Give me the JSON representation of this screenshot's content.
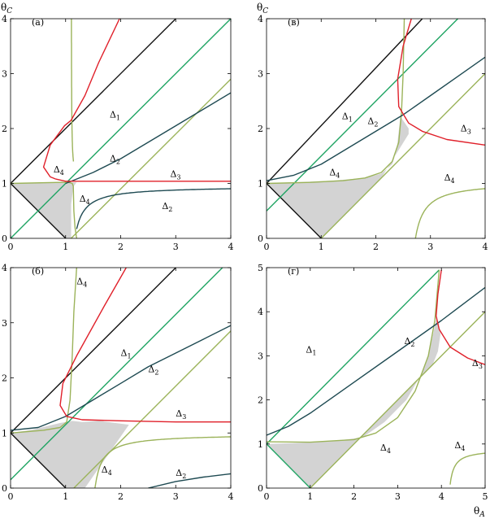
{
  "colors": {
    "black_line": "#111111",
    "green_line": "#1fa463",
    "olive_curve": "#9bb35a",
    "teal_curve": "#1e4a52",
    "red_curve": "#e0202a",
    "shaded_region": "#d3d3d3"
  },
  "chart_data": [
    {
      "type": "line",
      "panel_label": "(а)",
      "ylabel": "θC",
      "xlabel": "",
      "xlim": [
        0,
        4
      ],
      "ylim": [
        0,
        4
      ],
      "xticks": [
        "0",
        "1",
        "2",
        "3",
        "4"
      ],
      "yticks": [
        "0",
        "1",
        "2",
        "3",
        "4"
      ],
      "annotations": [
        {
          "text": "Δ1",
          "x": 1.8,
          "y": 2.2
        },
        {
          "text": "Δ2",
          "x": 1.8,
          "y": 1.4
        },
        {
          "text": "Δ3",
          "x": 2.9,
          "y": 1.12
        },
        {
          "text": "Δ4",
          "x": 0.78,
          "y": 1.2
        },
        {
          "text": "Δ4",
          "x": 1.25,
          "y": 0.67
        },
        {
          "text": "Δ2",
          "x": 2.75,
          "y": 0.53
        }
      ]
    },
    {
      "type": "line",
      "panel_label": "(в)",
      "ylabel": "θC",
      "xlabel": "",
      "xlim": [
        0,
        4
      ],
      "ylim": [
        0,
        4
      ],
      "xticks": [
        "0",
        "1",
        "2",
        "3",
        "4"
      ],
      "yticks": [
        "0",
        "1",
        "2",
        "3",
        "4"
      ],
      "annotations": [
        {
          "text": "Δ1",
          "x": 1.38,
          "y": 2.17
        },
        {
          "text": "Δ2",
          "x": 1.85,
          "y": 2.08
        },
        {
          "text": "Δ3",
          "x": 3.55,
          "y": 1.95
        },
        {
          "text": "Δ4",
          "x": 1.15,
          "y": 1.15
        },
        {
          "text": "Δ4",
          "x": 3.25,
          "y": 1.05
        }
      ]
    },
    {
      "type": "line",
      "panel_label": "(б)",
      "ylabel": "",
      "xlabel": "",
      "xlim": [
        0,
        4
      ],
      "ylim": [
        0,
        4
      ],
      "xticks": [
        "0",
        "1",
        "2",
        "3",
        "4"
      ],
      "yticks": [
        "0",
        "1",
        "2",
        "3",
        "4"
      ],
      "annotations": [
        {
          "text": "Δ4",
          "x": 1.2,
          "y": 3.7
        },
        {
          "text": "Δ1",
          "x": 2.0,
          "y": 2.4
        },
        {
          "text": "Δ2",
          "x": 2.5,
          "y": 2.1
        },
        {
          "text": "Δ3",
          "x": 3.0,
          "y": 1.3
        },
        {
          "text": "Δ4",
          "x": 1.65,
          "y": 0.28
        },
        {
          "text": "Δ2",
          "x": 3.0,
          "y": 0.22
        }
      ]
    },
    {
      "type": "line",
      "panel_label": "(г)",
      "ylabel": "",
      "xlabel": "θA",
      "xlim": [
        0,
        5
      ],
      "ylim": [
        0,
        5
      ],
      "xticks": [
        "0",
        "1",
        "2",
        "3",
        "4",
        "5"
      ],
      "yticks": [
        "0",
        "1",
        "2",
        "3",
        "4",
        "5"
      ],
      "annotations": [
        {
          "text": "Δ1",
          "x": 0.9,
          "y": 3.07
        },
        {
          "text": "Δ2",
          "x": 3.15,
          "y": 3.27
        },
        {
          "text": "Δ3",
          "x": 4.7,
          "y": 2.77
        },
        {
          "text": "Δ4",
          "x": 2.6,
          "y": 0.85
        },
        {
          "text": "Δ4",
          "x": 4.3,
          "y": 0.9
        }
      ]
    }
  ]
}
